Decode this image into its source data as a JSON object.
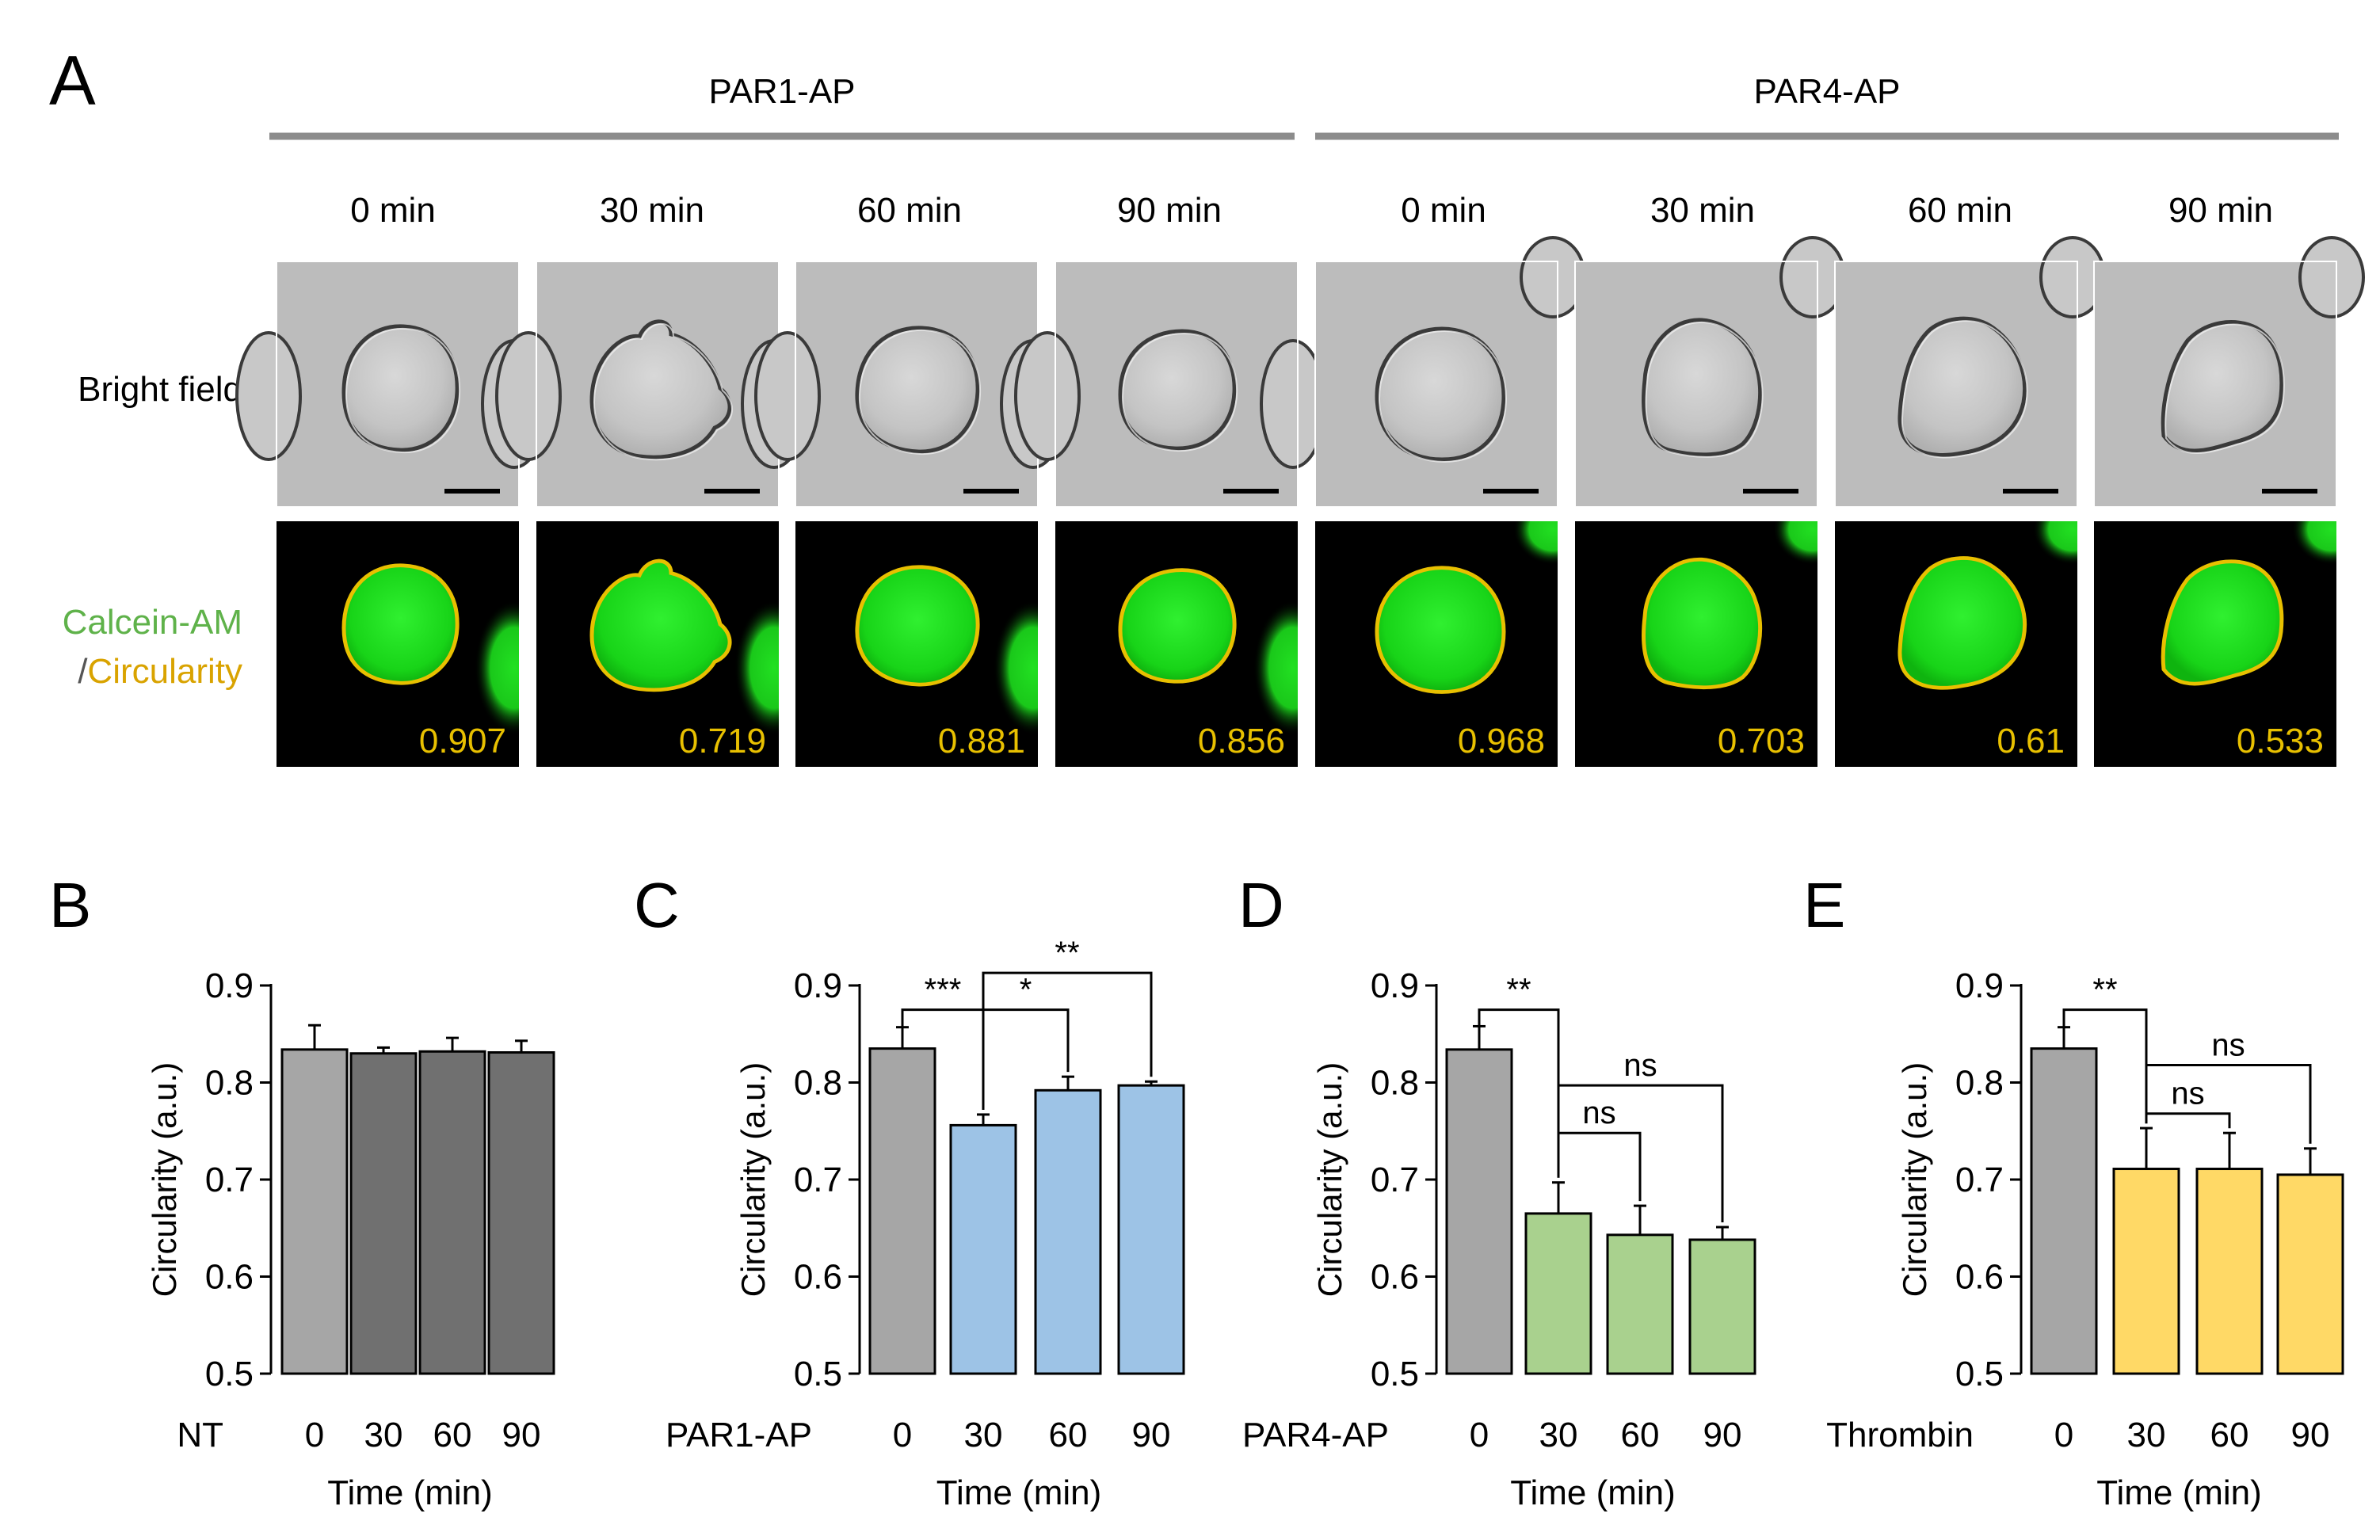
{
  "panel_letters": {
    "A": "A",
    "B": "B",
    "C": "C",
    "D": "D",
    "E": "E"
  },
  "panel_a": {
    "groups": [
      "PAR1-AP",
      "PAR4-AP"
    ],
    "times": [
      "0 min",
      "30 min",
      "60 min",
      "90 min",
      "0 min",
      "30 min",
      "60 min",
      "90 min"
    ],
    "row_labels": {
      "bright_field": "Bright field",
      "calcein_line1": "Calcein-AM",
      "calcein_slash": "/",
      "calcein_circ": "Circularity"
    },
    "circularity_values": [
      "0.907",
      "0.719",
      "0.881",
      "0.856",
      "0.968",
      "0.703",
      "0.61",
      "0.533"
    ],
    "colors": {
      "calcein": "#5fb24a",
      "circularity": "#d9a300",
      "outline": "#e8c000",
      "cell_green": "#22dd22"
    }
  },
  "chart_data": [
    {
      "panel": "B",
      "type": "bar",
      "condition_label": "NT",
      "categories": [
        "0",
        "30",
        "60",
        "90"
      ],
      "values": [
        0.834,
        0.83,
        0.832,
        0.831
      ],
      "errors": [
        0.025,
        0.006,
        0.014,
        0.012
      ],
      "colors": [
        "#a6a6a6",
        "#707070",
        "#707070",
        "#707070"
      ],
      "xlabel": "Time (min)",
      "ylabel": "Circularity (a.u.)",
      "ylim": [
        0.5,
        0.9
      ],
      "yticks": [
        "0.5",
        "0.6",
        "0.7",
        "0.8",
        "0.9"
      ],
      "significance": []
    },
    {
      "panel": "C",
      "type": "bar",
      "condition_label": "PAR1-AP",
      "categories": [
        "0",
        "30",
        "60",
        "90"
      ],
      "values": [
        0.835,
        0.756,
        0.792,
        0.797
      ],
      "errors": [
        0.022,
        0.011,
        0.014,
        0.004
      ],
      "colors": [
        "#a6a6a6",
        "#9dc3e6",
        "#9dc3e6",
        "#9dc3e6"
      ],
      "xlabel": "Time (min)",
      "ylabel": "Circularity (a.u.)",
      "ylim": [
        0.5,
        0.9
      ],
      "yticks": [
        "0.5",
        "0.6",
        "0.7",
        "0.8",
        "0.9"
      ],
      "significance": [
        {
          "from": 0,
          "to": 1,
          "label": "***",
          "level": 0.875
        },
        {
          "from": 1,
          "to": 2,
          "label": "*",
          "level": 0.875
        },
        {
          "from": 1,
          "to": 3,
          "label": "**",
          "level": 0.913
        }
      ]
    },
    {
      "panel": "D",
      "type": "bar",
      "condition_label": "PAR4-AP",
      "categories": [
        "0",
        "30",
        "60",
        "90"
      ],
      "values": [
        0.834,
        0.665,
        0.643,
        0.638
      ],
      "errors": [
        0.024,
        0.032,
        0.03,
        0.013
      ],
      "colors": [
        "#a6a6a6",
        "#a9d18e",
        "#a9d18e",
        "#a9d18e"
      ],
      "xlabel": "Time (min)",
      "ylabel": "Circularity (a.u.)",
      "ylim": [
        0.5,
        0.9
      ],
      "yticks": [
        "0.5",
        "0.6",
        "0.7",
        "0.8",
        "0.9"
      ],
      "significance": [
        {
          "from": 0,
          "to": 1,
          "label": "**",
          "level": 0.875
        },
        {
          "from": 1,
          "to": 2,
          "label": "ns",
          "level": 0.748
        },
        {
          "from": 1,
          "to": 3,
          "label": "ns",
          "level": 0.797
        }
      ]
    },
    {
      "panel": "E",
      "type": "bar",
      "condition_label": "Thrombin",
      "categories": [
        "0",
        "30",
        "60",
        "90"
      ],
      "values": [
        0.835,
        0.711,
        0.711,
        0.705
      ],
      "errors": [
        0.022,
        0.042,
        0.037,
        0.027
      ],
      "colors": [
        "#a6a6a6",
        "#ffd966",
        "#ffd966",
        "#ffd966"
      ],
      "xlabel": "Time (min)",
      "ylabel": "Circularity (a.u.)",
      "ylim": [
        0.5,
        0.9
      ],
      "yticks": [
        "0.5",
        "0.6",
        "0.7",
        "0.8",
        "0.9"
      ],
      "significance": [
        {
          "from": 0,
          "to": 1,
          "label": "**",
          "level": 0.875
        },
        {
          "from": 1,
          "to": 2,
          "label": "ns",
          "level": 0.768
        },
        {
          "from": 1,
          "to": 3,
          "label": "ns",
          "level": 0.818
        }
      ]
    }
  ]
}
